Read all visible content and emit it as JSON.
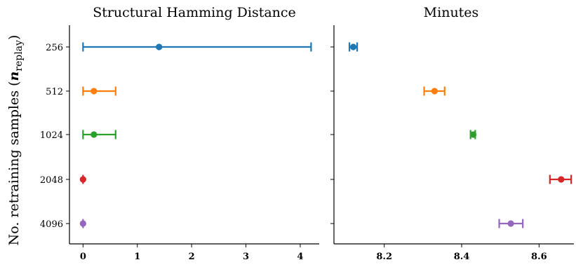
{
  "chart_data": [
    {
      "type": "errorbar",
      "title": "Structural Hamming Distance",
      "ylabel": "No. retraining samples (",
      "ylabel_math_main": "n",
      "ylabel_math_sub": "replay",
      "ylabel_close": ")",
      "categories": [
        "256",
        "512",
        "1024",
        "2048",
        "4096"
      ],
      "xlim": [
        -0.25,
        4.35
      ],
      "xticks": [
        0,
        1,
        2,
        3,
        4
      ],
      "colors": [
        "#1f77b4",
        "#ff7f0e",
        "#2ca02c",
        "#d62728",
        "#9467bd"
      ],
      "points": [
        {
          "category": "256",
          "value": 1.4,
          "low": 0.0,
          "high": 4.2
        },
        {
          "category": "512",
          "value": 0.2,
          "low": 0.0,
          "high": 0.6
        },
        {
          "category": "1024",
          "value": 0.2,
          "low": 0.0,
          "high": 0.6
        },
        {
          "category": "2048",
          "value": 0.0,
          "low": 0.0,
          "high": 0.0
        },
        {
          "category": "4096",
          "value": 0.0,
          "low": 0.0,
          "high": 0.0
        }
      ]
    },
    {
      "type": "errorbar",
      "title": "Minutes",
      "categories": [
        "256",
        "512",
        "1024",
        "2048",
        "4096"
      ],
      "xlim": [
        8.07,
        8.69
      ],
      "xticks": [
        8.2,
        8.4,
        8.6
      ],
      "xtick_labels": [
        "8.2",
        "8.4",
        "8.6"
      ],
      "colors": [
        "#1f77b4",
        "#ff7f0e",
        "#2ca02c",
        "#d62728",
        "#9467bd"
      ],
      "points": [
        {
          "category": "256",
          "value": 8.12,
          "low": 8.11,
          "high": 8.13
        },
        {
          "category": "512",
          "value": 8.33,
          "low": 8.303,
          "high": 8.356
        },
        {
          "category": "1024",
          "value": 8.43,
          "low": 8.423,
          "high": 8.435
        },
        {
          "category": "2048",
          "value": 8.657,
          "low": 8.628,
          "high": 8.683
        },
        {
          "category": "4096",
          "value": 8.527,
          "low": 8.497,
          "high": 8.558
        }
      ]
    }
  ]
}
